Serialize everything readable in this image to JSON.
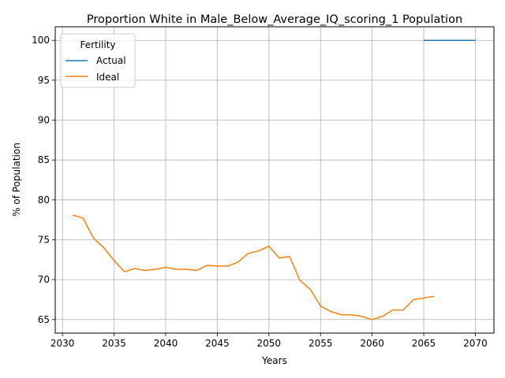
{
  "chart_data": {
    "type": "line",
    "title": "Proportion White in Male_Below_Average_IQ_scoring_1 Population",
    "xlabel": "Years",
    "ylabel": "% of Population",
    "xlim": [
      2029.3,
      2071.8
    ],
    "ylim": [
      63.3,
      101.7
    ],
    "xticks": [
      2030,
      2035,
      2040,
      2045,
      2050,
      2055,
      2060,
      2065,
      2070
    ],
    "yticks": [
      65,
      70,
      75,
      80,
      85,
      90,
      95,
      100
    ],
    "grid": true,
    "legend": {
      "title": "Fertility",
      "placement": "top-left"
    },
    "series": [
      {
        "name": "Actual",
        "color": "#1f77b4",
        "x": [
          2065,
          2066,
          2067,
          2068,
          2069,
          2070
        ],
        "y": [
          100,
          100,
          100,
          100,
          100,
          100
        ]
      },
      {
        "name": "Ideal",
        "color": "#ff7f0e",
        "x": [
          2031,
          2032,
          2033,
          2034,
          2035,
          2036,
          2037,
          2038,
          2039,
          2040,
          2041,
          2042,
          2043,
          2044,
          2045,
          2046,
          2047,
          2048,
          2049,
          2050,
          2051,
          2052,
          2053,
          2054,
          2055,
          2056,
          2057,
          2058,
          2059,
          2060,
          2061,
          2062,
          2063,
          2064,
          2065,
          2066
        ],
        "y": [
          78.1,
          77.7,
          75.2,
          74.0,
          72.4,
          71.0,
          71.4,
          71.15,
          71.3,
          71.55,
          71.3,
          71.3,
          71.15,
          71.8,
          71.7,
          71.7,
          72.2,
          73.3,
          73.6,
          74.2,
          72.7,
          72.9,
          69.9,
          68.8,
          66.7,
          66.0,
          65.6,
          65.6,
          65.4,
          65.0,
          65.4,
          66.2,
          66.2,
          67.5,
          67.7,
          67.9
        ]
      }
    ]
  }
}
